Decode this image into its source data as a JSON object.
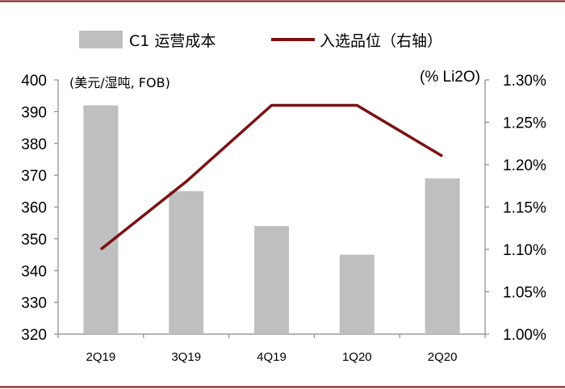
{
  "chart_data": {
    "type": "bar+line",
    "categories": [
      "2Q19",
      "3Q19",
      "4Q19",
      "1Q20",
      "2Q20"
    ],
    "series": [
      {
        "name": "C1 运营成本",
        "kind": "bar",
        "axis": "left",
        "color": "#bfbfbf",
        "values": [
          392,
          365,
          354,
          345,
          369
        ]
      },
      {
        "name": "入选品位（右轴）",
        "kind": "line",
        "axis": "right",
        "color": "#7b1113",
        "values": [
          1.1,
          1.18,
          1.27,
          1.27,
          1.21
        ]
      }
    ],
    "left_axis": {
      "unit_label": "(美元/湿吨, FOB)",
      "min": 320,
      "max": 400,
      "ticks": [
        "400",
        "390",
        "380",
        "370",
        "360",
        "350",
        "340",
        "330",
        "320"
      ]
    },
    "right_axis": {
      "unit_label": "(% Li2O)",
      "min": 1.0,
      "max": 1.3,
      "ticks": [
        "1.30%",
        "1.25%",
        "1.20%",
        "1.15%",
        "1.10%",
        "1.05%",
        "1.00%"
      ]
    },
    "legend": [
      "C1 运营成本",
      "入选品位（右轴）"
    ],
    "frame_color": "#7b1113"
  }
}
